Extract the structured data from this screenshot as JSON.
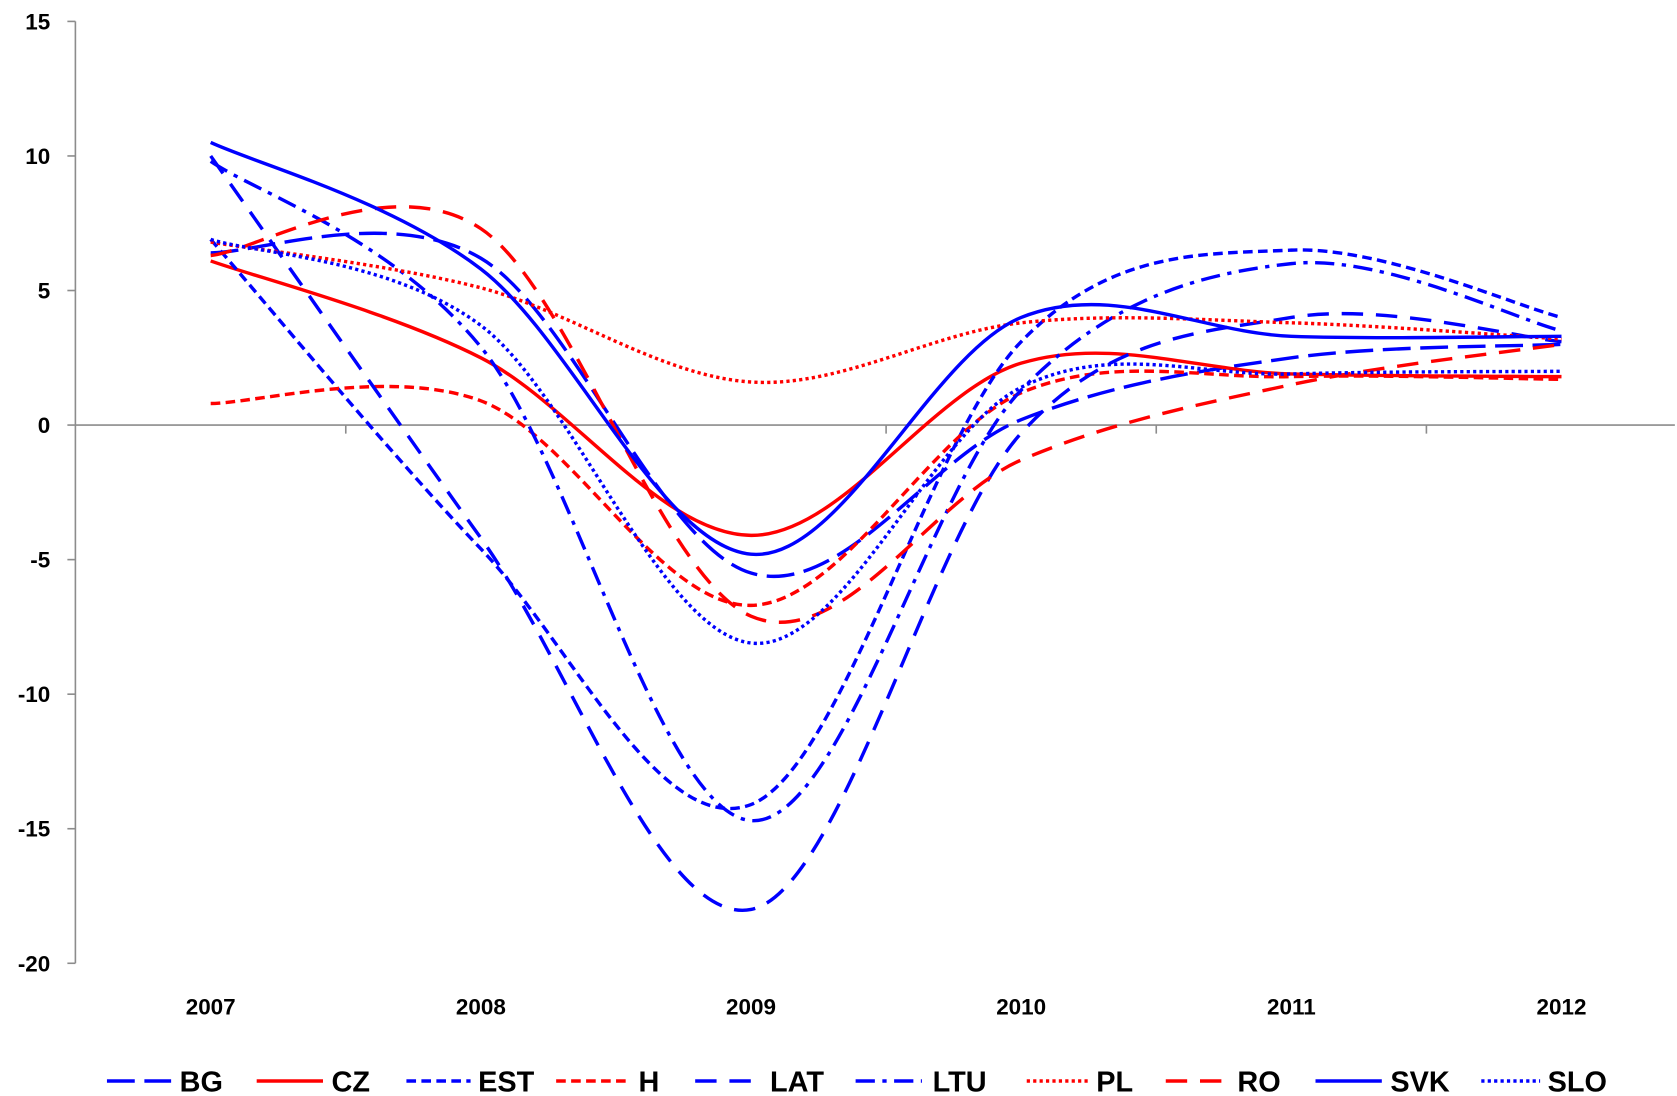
{
  "chart_data": {
    "type": "line",
    "smooth": true,
    "grid": false,
    "legend": "bottom",
    "categories": [
      "2007",
      "2008",
      "2009",
      "2010",
      "2011",
      "2012"
    ],
    "ylim": [
      -20,
      15
    ],
    "yticks": [
      15,
      10,
      5,
      0,
      -5,
      -10,
      -15,
      -20
    ],
    "series": [
      {
        "name": "BG",
        "color": "#0000FF",
        "line_style": "long-dash",
        "values": [
          6.4,
          6.2,
          -5.5,
          0.2,
          2.5,
          3.0
        ]
      },
      {
        "name": "CZ",
        "color": "#FF0000",
        "line_style": "solid",
        "values": [
          6.1,
          2.5,
          -4.1,
          2.3,
          1.9,
          1.8
        ]
      },
      {
        "name": "EST",
        "color": "#0000FF",
        "line_style": "short-dash",
        "values": [
          6.9,
          -4.6,
          -14.1,
          3.1,
          6.5,
          4.0
        ]
      },
      {
        "name": "H",
        "color": "#FF0000",
        "line_style": "short-dash",
        "values": [
          0.8,
          0.9,
          -6.7,
          1.2,
          1.8,
          1.7
        ]
      },
      {
        "name": "LAT",
        "color": "#0000FF",
        "line_style": "dash",
        "values": [
          10.0,
          -4.2,
          -18.0,
          -0.3,
          4.0,
          3.1
        ]
      },
      {
        "name": "LTU",
        "color": "#0000FF",
        "line_style": "dash-dot",
        "values": [
          9.8,
          2.9,
          -14.7,
          1.3,
          6.0,
          3.5
        ]
      },
      {
        "name": "PL",
        "color": "#FF0000",
        "line_style": "dot",
        "values": [
          6.8,
          5.1,
          1.6,
          3.8,
          3.8,
          3.2
        ]
      },
      {
        "name": "RO",
        "color": "#FF0000",
        "line_style": "dash",
        "values": [
          6.3,
          7.3,
          -7.1,
          -1.3,
          1.5,
          3.0
        ]
      },
      {
        "name": "SVK",
        "color": "#0000FF",
        "line_style": "solid",
        "values": [
          10.5,
          5.8,
          -4.8,
          4.0,
          3.3,
          3.3
        ]
      },
      {
        "name": "SLO",
        "color": "#0000FF",
        "line_style": "dot",
        "values": [
          6.9,
          3.7,
          -8.1,
          1.4,
          1.9,
          2.0
        ]
      }
    ]
  }
}
